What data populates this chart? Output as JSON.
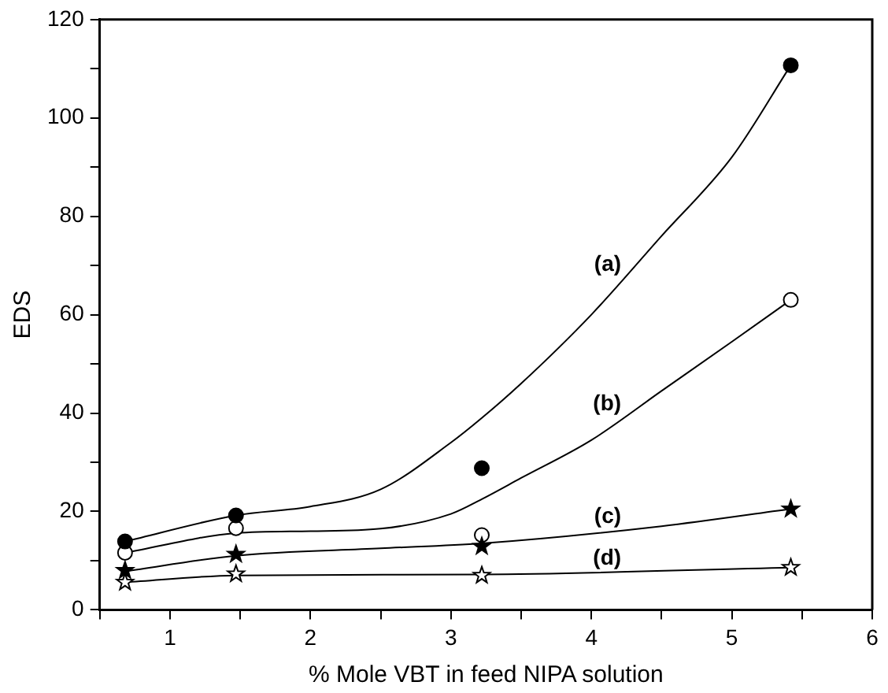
{
  "chart_data": {
    "type": "scatter",
    "xlabel": "% Mole VBT in feed NIPA solution",
    "ylabel": "EDS",
    "xlim": [
      0.5,
      6
    ],
    "ylim": [
      0,
      120
    ],
    "xticks": [
      {
        "value": 0.5,
        "label": null
      },
      1,
      {
        "value": 1.5,
        "label": null
      },
      2,
      {
        "value": 2.5,
        "label": null
      },
      3,
      {
        "value": 3.5,
        "label": null
      },
      4,
      {
        "value": 4.5,
        "label": null
      },
      5,
      {
        "value": 5.5,
        "label": null
      },
      6
    ],
    "yticks": [
      0,
      {
        "value": 10,
        "label": null
      },
      20,
      {
        "value": 30,
        "label": null
      },
      40,
      {
        "value": 50,
        "label": null
      },
      60,
      {
        "value": 70,
        "label": null
      },
      80,
      {
        "value": 90,
        "label": null
      },
      100,
      {
        "value": 110,
        "label": null
      },
      120
    ],
    "grid": false,
    "legend": false,
    "series": [
      {
        "marker": "circle",
        "color": "#000000",
        "x": [
          0.68,
          1.47,
          3.22,
          5.42
        ],
        "values": [
          13.9,
          19.2,
          28.8,
          110.7
        ]
      },
      {
        "marker": "circle",
        "color": "#ffffff",
        "x": [
          0.68,
          1.47,
          3.22,
          5.42
        ],
        "values": [
          11.6,
          16.6,
          15.2,
          63
        ]
      },
      {
        "marker": "star",
        "color": "#000000",
        "x": [
          0.68,
          1.47,
          3.22,
          5.42
        ],
        "values": [
          8,
          11.3,
          12.9,
          20.5
        ]
      },
      {
        "marker": "star",
        "color": "#ffffff",
        "x": [
          0.68,
          1.47,
          3.22,
          5.42
        ],
        "values": [
          5.6,
          7.3,
          7,
          8.6
        ]
      },
      {
        "type": "line",
        "name": "(a)",
        "marker": "none",
        "color": "#000000",
        "x": [
          0.68,
          1.47,
          2,
          2.5,
          3,
          3.22,
          3.5,
          4,
          4.5,
          5,
          5.42
        ],
        "values": [
          13.9,
          19.2,
          21,
          24.5,
          34,
          39,
          46,
          60,
          76,
          92,
          110.7
        ]
      },
      {
        "type": "line",
        "name": "(b)",
        "marker": "none",
        "color": "#000000",
        "x": [
          0.68,
          1.47,
          2,
          2.5,
          3,
          3.22,
          3.5,
          4,
          4.5,
          5,
          5.42
        ],
        "values": [
          11.6,
          15.6,
          16,
          16.5,
          19.5,
          22.5,
          26.8,
          34.5,
          44.5,
          54.5,
          63
        ]
      },
      {
        "type": "line",
        "name": "(c)",
        "marker": "none",
        "color": "#000000",
        "x": [
          0.68,
          1.47,
          2.5,
          3.22,
          4.5,
          5.42
        ],
        "values": [
          7.8,
          11,
          12.5,
          13.5,
          17,
          20.5
        ]
      },
      {
        "type": "line",
        "name": "(d)",
        "marker": "none",
        "color": "#000000",
        "x": [
          0.68,
          1.47,
          3.22,
          5.42
        ],
        "values": [
          5.6,
          7,
          7.2,
          8.6
        ]
      }
    ]
  }
}
